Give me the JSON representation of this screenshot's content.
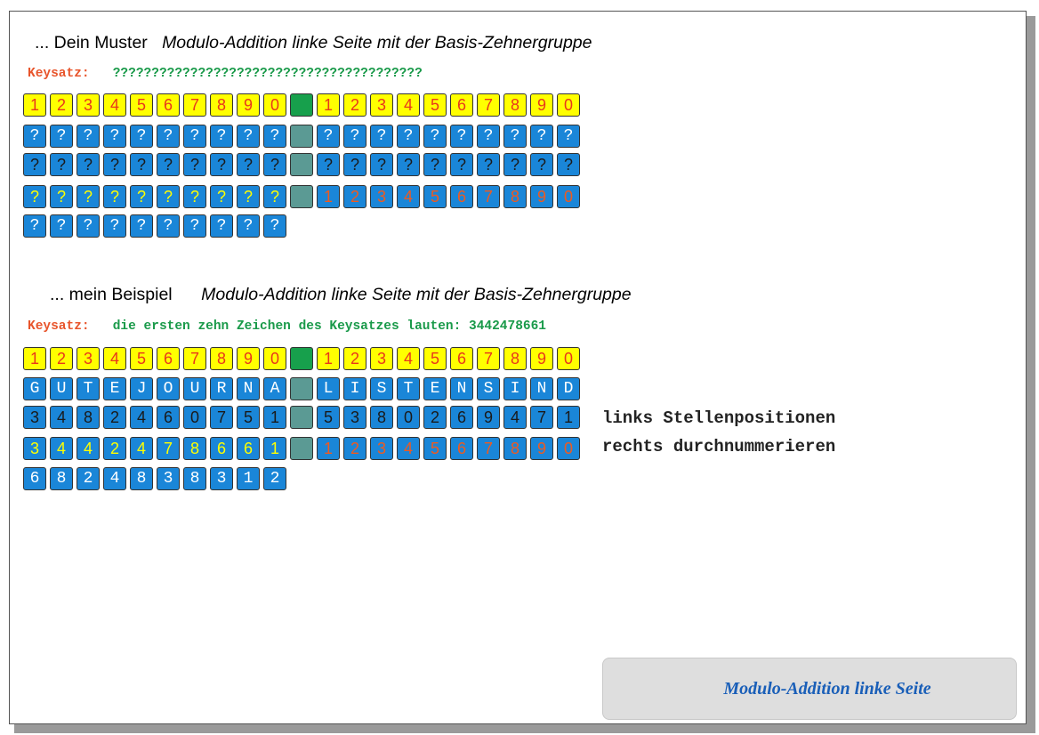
{
  "section1": {
    "heading_prefix": "... Dein Muster",
    "heading_title": "Modulo-Addition linke Seite mit der Basis-Zehnergruppe",
    "key_label": "Keysatz:",
    "key_value": "????????????????????????????????????????",
    "rows": [
      {
        "left": [
          "1",
          "2",
          "3",
          "4",
          "5",
          "6",
          "7",
          "8",
          "9",
          "0"
        ],
        "right": [
          "1",
          "2",
          "3",
          "4",
          "5",
          "6",
          "7",
          "8",
          "9",
          "0"
        ]
      },
      {
        "left": [
          "?",
          "?",
          "?",
          "?",
          "?",
          "?",
          "?",
          "?",
          "?",
          "?"
        ],
        "right": [
          "?",
          "?",
          "?",
          "?",
          "?",
          "?",
          "?",
          "?",
          "?",
          "?"
        ]
      },
      {
        "left": [
          "?",
          "?",
          "?",
          "?",
          "?",
          "?",
          "?",
          "?",
          "?",
          "?"
        ],
        "right": [
          "?",
          "?",
          "?",
          "?",
          "?",
          "?",
          "?",
          "?",
          "?",
          "?"
        ]
      },
      {
        "left": [
          "?",
          "?",
          "?",
          "?",
          "?",
          "?",
          "?",
          "?",
          "?",
          "?"
        ],
        "right": [
          "1",
          "2",
          "3",
          "4",
          "5",
          "6",
          "7",
          "8",
          "9",
          "0"
        ]
      },
      {
        "left": [
          "?",
          "?",
          "?",
          "?",
          "?",
          "?",
          "?",
          "?",
          "?",
          "?"
        ],
        "right": []
      }
    ]
  },
  "section2": {
    "heading_prefix": "... mein Beispiel",
    "heading_title": "Modulo-Addition linke Seite mit der Basis-Zehnergruppe",
    "key_label": "Keysatz:",
    "key_value": "die ersten zehn Zeichen des Keysatzes lauten: 3442478661",
    "rows": [
      {
        "left": [
          "1",
          "2",
          "3",
          "4",
          "5",
          "6",
          "7",
          "8",
          "9",
          "0"
        ],
        "right": [
          "1",
          "2",
          "3",
          "4",
          "5",
          "6",
          "7",
          "8",
          "9",
          "0"
        ]
      },
      {
        "left": [
          "G",
          "U",
          "T",
          "E",
          "J",
          "O",
          "U",
          "R",
          "N",
          "A"
        ],
        "right": [
          "L",
          "I",
          "S",
          "T",
          "E",
          "N",
          "S",
          "I",
          "N",
          "D"
        ]
      },
      {
        "left": [
          "3",
          "4",
          "8",
          "2",
          "4",
          "6",
          "0",
          "7",
          "5",
          "1"
        ],
        "right": [
          "5",
          "3",
          "8",
          "0",
          "2",
          "6",
          "9",
          "4",
          "7",
          "1"
        ]
      },
      {
        "left": [
          "3",
          "4",
          "4",
          "2",
          "4",
          "7",
          "8",
          "6",
          "6",
          "1"
        ],
        "right": [
          "1",
          "2",
          "3",
          "4",
          "5",
          "6",
          "7",
          "8",
          "9",
          "0"
        ]
      },
      {
        "left": [
          "6",
          "8",
          "2",
          "4",
          "8",
          "3",
          "8",
          "3",
          "1",
          "2"
        ],
        "right": []
      }
    ],
    "note_line1": "links Stellenpositionen",
    "note_line2": "rechts durchnummerieren"
  },
  "footer": {
    "label": "Modulo-Addition linke Seite"
  },
  "colors": {
    "yellow": "#ffff00",
    "blue": "#1a86d8",
    "green_separator": "#17a04c",
    "teal_separator": "#5b9a94",
    "red_text": "#e8371b",
    "key_label": "#e8552c",
    "key_value": "#1a9a4a",
    "footer_text": "#1a5fb8"
  }
}
